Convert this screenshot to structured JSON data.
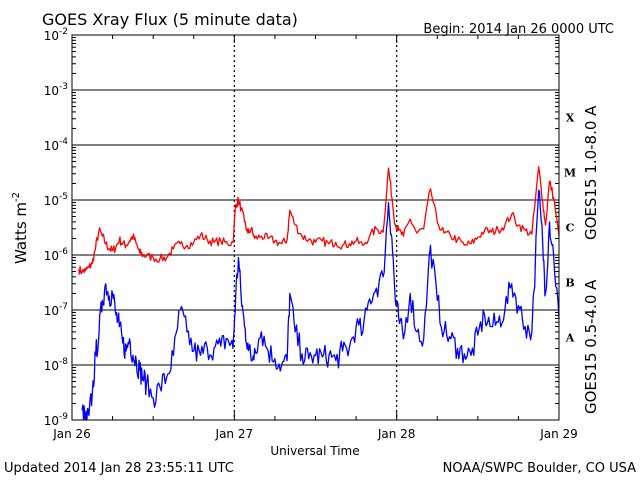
{
  "header": {
    "title": "GOES Xray Flux (5 minute data)",
    "begin": "Begin:  2014 Jan 26 0000 UTC"
  },
  "footer": {
    "updated": "Updated 2014 Jan 28 23:55:11 UTC",
    "credit": "NOAA/SWPC Boulder, CO USA"
  },
  "chart_data": {
    "type": "line",
    "title": "GOES Xray Flux (5 minute data)",
    "xlabel": "Universal Time",
    "ylabel": "Watts m",
    "ylabel_sup": "-2",
    "y_scale": "log",
    "ylim": [
      1e-09,
      0.01
    ],
    "xlim": [
      0,
      72
    ],
    "x_unit": "hours since 2014 Jan 26 0000 UTC",
    "grid": "horizontal at each decade; dotted vertical lines at day boundaries",
    "y_ticks": [
      {
        "base": "10",
        "exp": "-9"
      },
      {
        "base": "10",
        "exp": "-8"
      },
      {
        "base": "10",
        "exp": "-7"
      },
      {
        "base": "10",
        "exp": "-6"
      },
      {
        "base": "10",
        "exp": "-5"
      },
      {
        "base": "10",
        "exp": "-4"
      },
      {
        "base": "10",
        "exp": "-3"
      },
      {
        "base": "10",
        "exp": "-2"
      }
    ],
    "x_ticks": [
      "Jan 26",
      "Jan 27",
      "Jan 28",
      "Jan 29"
    ],
    "flare_classes": [
      "A",
      "B",
      "C",
      "M",
      "X"
    ],
    "series": [
      {
        "name": "GOES15 1.0-8.0 A",
        "color": "#ff0000",
        "x": [
          1.0,
          1.5,
          2.0,
          2.5,
          3.0,
          3.5,
          4.0,
          4.5,
          5.0,
          5.5,
          6.0,
          6.5,
          7.0,
          7.5,
          8.0,
          8.5,
          9.0,
          9.5,
          10.0,
          10.5,
          11.0,
          12.0,
          13.0,
          14.0,
          15.0,
          16.0,
          17.0,
          18.0,
          19.0,
          20.0,
          21.0,
          22.0,
          23.0,
          23.8,
          24.2,
          24.6,
          25.0,
          25.5,
          26.0,
          26.5,
          27.0,
          28.0,
          29.0,
          30.0,
          31.0,
          31.8,
          32.2,
          33.0,
          34.0,
          35.0,
          36.0,
          37.0,
          38.0,
          39.0,
          40.0,
          41.0,
          42.0,
          43.0,
          44.0,
          45.0,
          46.0,
          46.8,
          47.3,
          47.8,
          48.3,
          49.0,
          50.0,
          51.0,
          52.0,
          53.0,
          54.0,
          55.0,
          56.0,
          57.0,
          58.0,
          59.0,
          60.0,
          61.0,
          62.0,
          63.0,
          64.0,
          65.0,
          66.0,
          67.0,
          68.0,
          69.0,
          69.6,
          70.0,
          70.6,
          71.2,
          72.0
        ],
        "y": [
          5.5e-07,
          5e-07,
          5.2e-07,
          6e-07,
          7e-07,
          1.4e-06,
          2.8e-06,
          2.2e-06,
          1.6e-06,
          1.3e-06,
          1.2e-06,
          1.4e-06,
          1.9e-06,
          1.6e-06,
          1.5e-06,
          1.8e-06,
          2.2e-06,
          1.6e-06,
          1.1e-06,
          1e-06,
          9.5e-07,
          9e-07,
          8.5e-07,
          9e-07,
          1.3e-06,
          1.6e-06,
          1.5e-06,
          1.7e-06,
          2.3e-06,
          1.9e-06,
          1.7e-06,
          1.8e-06,
          1.6e-06,
          1.7e-06,
          8e-06,
          1e-05,
          7e-06,
          4e-06,
          2.5e-06,
          3e-06,
          2e-06,
          2.2e-06,
          2e-06,
          1.8e-06,
          1.6e-06,
          1.9e-06,
          6.5e-06,
          3.5e-06,
          2.2e-06,
          1.9e-06,
          1.7e-06,
          1.8e-06,
          1.6e-06,
          1.7e-06,
          1.5e-06,
          1.6e-06,
          1.8e-06,
          1.5e-06,
          2.2e-06,
          3e-06,
          2.6e-06,
          3.8e-05,
          1.1e-05,
          3.5e-06,
          2.8e-06,
          2.2e-06,
          4.5e-06,
          2.5e-06,
          3e-06,
          1.6e-05,
          4e-06,
          2.5e-06,
          2.2e-06,
          1.9e-06,
          1.5e-06,
          1.6e-06,
          2.1e-06,
          2.8e-06,
          2.6e-06,
          2.9e-06,
          3.5e-06,
          5.5e-06,
          3.5e-06,
          2.8e-06,
          2.4e-06,
          4e-05,
          9e-06,
          3.5e-06,
          2.2e-05,
          1.1e-05,
          2.2e-06
        ]
      },
      {
        "name": "GOES15 0.5-4.0 A",
        "color": "#0000ff",
        "x": [
          1.5,
          2.0,
          2.5,
          3.0,
          3.5,
          4.0,
          4.5,
          5.0,
          5.5,
          6.0,
          6.5,
          7.0,
          7.5,
          8.0,
          8.5,
          9.0,
          9.5,
          10.0,
          10.5,
          11.0,
          12.0,
          13.0,
          14.0,
          15.0,
          16.0,
          17.0,
          18.0,
          19.0,
          20.0,
          21.0,
          22.0,
          23.0,
          23.8,
          24.2,
          24.6,
          25.0,
          25.5,
          26.0,
          26.5,
          27.0,
          28.0,
          29.0,
          30.0,
          31.0,
          31.8,
          32.2,
          33.0,
          34.0,
          35.0,
          36.0,
          37.0,
          38.0,
          39.0,
          40.0,
          41.0,
          42.0,
          43.0,
          44.0,
          45.0,
          46.0,
          46.8,
          47.3,
          47.8,
          48.3,
          49.0,
          50.0,
          51.0,
          52.0,
          53.0,
          54.0,
          55.0,
          56.0,
          57.0,
          58.0,
          59.0,
          60.0,
          61.0,
          62.0,
          63.0,
          64.0,
          65.0,
          66.0,
          67.0,
          68.0,
          69.0,
          69.6,
          70.0,
          70.6,
          71.2,
          72.0
        ],
        "y": [
          1.5e-09,
          1e-09,
          1.2e-09,
          3e-09,
          1.5e-08,
          4e-08,
          1.5e-07,
          3e-07,
          1.8e-07,
          2e-07,
          8e-08,
          5e-08,
          2.5e-08,
          1.8e-08,
          3e-08,
          1.5e-08,
          1.2e-08,
          8e-09,
          6e-09,
          4.5e-09,
          2.5e-09,
          4e-09,
          6e-09,
          1.5e-08,
          1e-07,
          4e-08,
          1.8e-08,
          1.5e-08,
          2e-08,
          2e-08,
          2.2e-08,
          3e-08,
          2e-08,
          1.8e-07,
          9e-07,
          1.8e-07,
          5e-08,
          2.5e-08,
          1.2e-08,
          2e-08,
          4e-08,
          1.8e-08,
          1.3e-08,
          1e-08,
          1.2e-08,
          2e-07,
          4e-08,
          1.6e-08,
          1.3e-08,
          1.5e-08,
          1.4e-08,
          1.5e-08,
          1.2e-08,
          1.8e-08,
          2e-08,
          5e-08,
          4e-08,
          1.6e-07,
          2.5e-07,
          4e-07,
          9e-06,
          2e-06,
          1.5e-07,
          7e-08,
          3e-08,
          2e-07,
          4e-08,
          3e-08,
          1.5e-06,
          1.5e-07,
          4e-08,
          3e-08,
          2e-08,
          1.6e-08,
          1.5e-08,
          3.5e-08,
          8e-08,
          5e-08,
          6e-08,
          1e-07,
          3e-07,
          1.2e-07,
          5e-08,
          4e-08,
          1.5e-05,
          1.5e-06,
          2e-07,
          4e-06,
          1e-06,
          7e-08
        ]
      }
    ]
  }
}
